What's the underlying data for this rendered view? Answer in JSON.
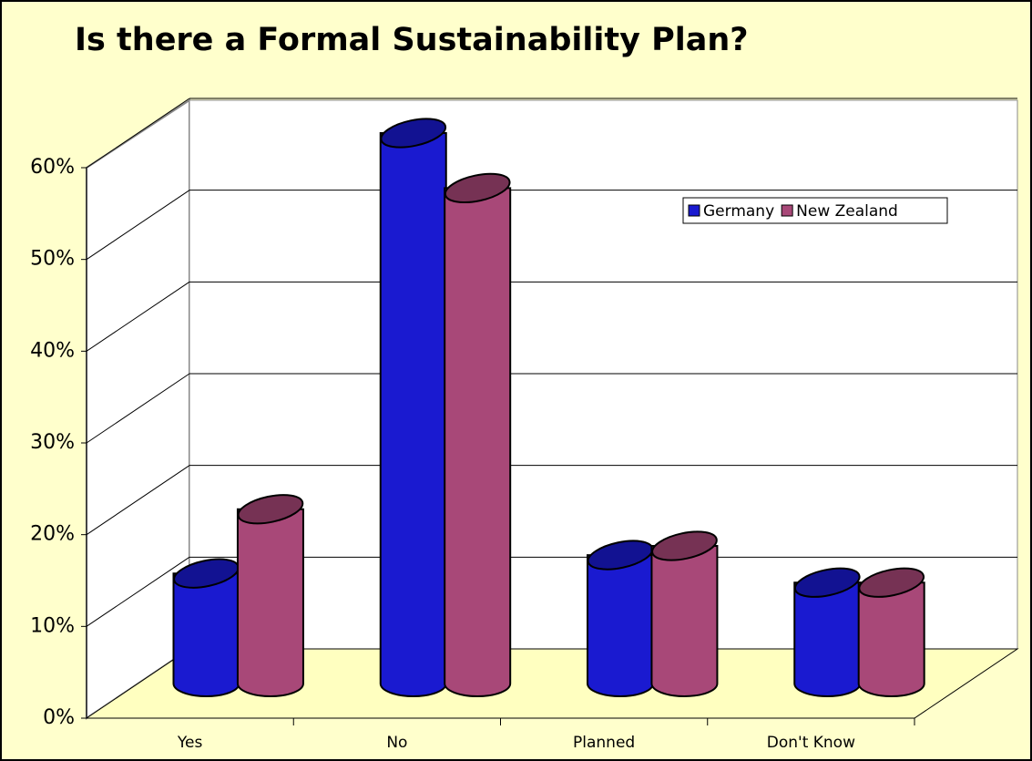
{
  "chart_data": {
    "type": "cylinder",
    "title": "Is there a Formal Sustainability Plan?",
    "categories": [
      "Yes",
      "No",
      "Planned",
      "Don't Know"
    ],
    "series": [
      {
        "name": "Germany",
        "color": "#1a1ad0",
        "values": [
          12,
          60,
          14,
          11
        ]
      },
      {
        "name": "New Zealand",
        "color": "#a84878",
        "values": [
          19,
          54,
          15,
          11
        ]
      }
    ],
    "ylim": [
      0,
      60
    ],
    "yticks": [
      {
        "value": 0,
        "label": "0%"
      },
      {
        "value": 10,
        "label": "10%"
      },
      {
        "value": 20,
        "label": "20%"
      },
      {
        "value": 30,
        "label": "30%"
      },
      {
        "value": 40,
        "label": "40%"
      },
      {
        "value": 50,
        "label": "50%"
      },
      {
        "value": 60,
        "label": "60%"
      }
    ],
    "grid": true
  }
}
